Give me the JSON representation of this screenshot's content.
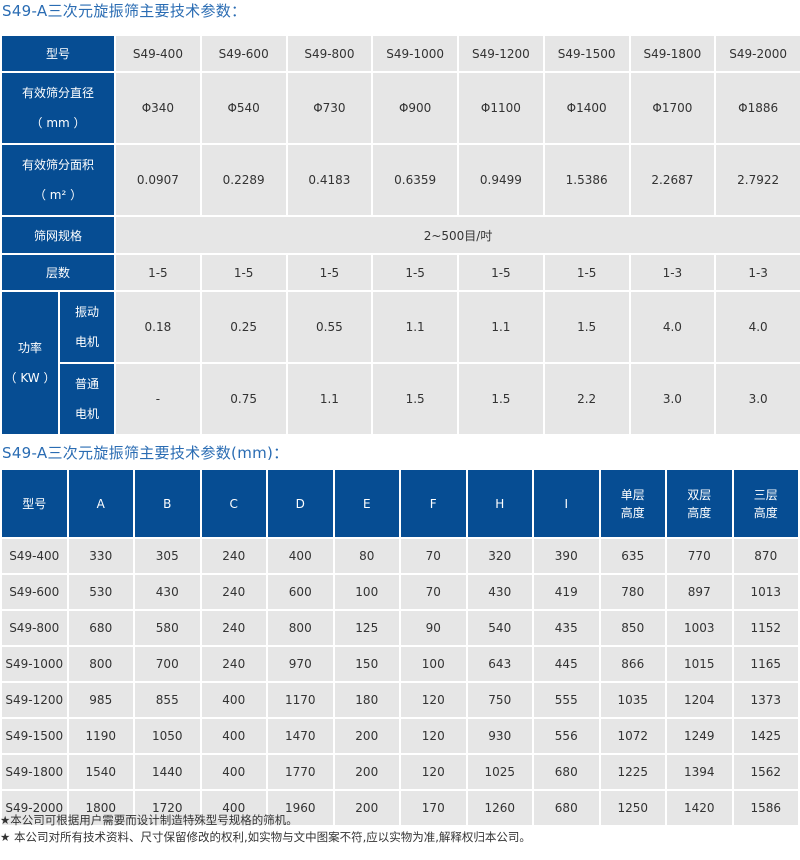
{
  "table1": {
    "title": "S49-A三次元旋振筛主要技术参数：",
    "header_label": "型号",
    "models": [
      "S49-400",
      "S49-600",
      "S49-800",
      "S49-1000",
      "S49-1200",
      "S49-1500",
      "S49-1800",
      "S49-2000"
    ],
    "diameter": {
      "label": "有效筛分直径",
      "unit": "（ mm ）",
      "values": [
        "Φ340",
        "Φ540",
        "Φ730",
        "Φ900",
        "Φ1100",
        "Φ1400",
        "Φ1700",
        "Φ1886"
      ]
    },
    "area": {
      "label": "有效筛分面积",
      "unit": "（ m² ）",
      "values": [
        "0.0907",
        "0.2289",
        "0.4183",
        "0.6359",
        "0.9499",
        "1.5386",
        "2.2687",
        "2.7922"
      ]
    },
    "mesh": {
      "label": "筛网规格",
      "value": "2~500目/吋"
    },
    "layers": {
      "label": "层数",
      "values": [
        "1-5",
        "1-5",
        "1-5",
        "1-5",
        "1-5",
        "1-5",
        "1-3",
        "1-3"
      ]
    },
    "power": {
      "label": "功率",
      "unit": "（ KW ）",
      "vibration_motor": {
        "label_1": "振动",
        "label_2": "电机",
        "values": [
          "0.18",
          "0.25",
          "0.55",
          "1.1",
          "1.1",
          "1.5",
          "4.0",
          "4.0"
        ]
      },
      "normal_motor": {
        "label_1": "普通",
        "label_2": "电机",
        "values": [
          "-",
          "0.75",
          "1.1",
          "1.5",
          "1.5",
          "2.2",
          "3.0",
          "3.0"
        ]
      }
    }
  },
  "table2": {
    "title": "S49-A三次元旋振筛主要技术参数(mm)：",
    "headers": [
      [
        "型号"
      ],
      [
        "A"
      ],
      [
        "B"
      ],
      [
        "C"
      ],
      [
        "D"
      ],
      [
        "E"
      ],
      [
        "F"
      ],
      [
        "H"
      ],
      [
        "I"
      ],
      [
        "单层",
        "高度"
      ],
      [
        "双层",
        "高度"
      ],
      [
        "三层",
        "高度"
      ]
    ],
    "rows": [
      [
        "S49-400",
        "330",
        "305",
        "240",
        "400",
        "80",
        "70",
        "320",
        "390",
        "635",
        "770",
        "870"
      ],
      [
        "S49-600",
        "530",
        "430",
        "240",
        "600",
        "100",
        "70",
        "430",
        "419",
        "780",
        "897",
        "1013"
      ],
      [
        "S49-800",
        "680",
        "580",
        "240",
        "800",
        "125",
        "90",
        "540",
        "435",
        "850",
        "1003",
        "1152"
      ],
      [
        "S49-1000",
        "800",
        "700",
        "240",
        "970",
        "150",
        "100",
        "643",
        "445",
        "866",
        "1015",
        "1165"
      ],
      [
        "S49-1200",
        "985",
        "855",
        "400",
        "1170",
        "180",
        "120",
        "750",
        "555",
        "1035",
        "1204",
        "1373"
      ],
      [
        "S49-1500",
        "1190",
        "1050",
        "400",
        "1470",
        "200",
        "120",
        "930",
        "556",
        "1072",
        "1249",
        "1425"
      ],
      [
        "S49-1800",
        "1540",
        "1440",
        "400",
        "1770",
        "200",
        "120",
        "1025",
        "680",
        "1225",
        "1394",
        "1562"
      ],
      [
        "S49-2000",
        "1800",
        "1720",
        "400",
        "1960",
        "200",
        "170",
        "1260",
        "680",
        "1250",
        "1420",
        "1586"
      ]
    ]
  },
  "notes": [
    "★本公司可根据用户需要而设计制造特殊型号规格的筛机。",
    "★ 本公司对所有技术资料、尺寸保留修改的权利,如实物与文中图案不符,应以实物为准,解释权归本公司。"
  ],
  "colors": {
    "header_blue": "#064d93",
    "cell_gray": "#e6e6e6",
    "title_blue": "#2a6cb3"
  }
}
